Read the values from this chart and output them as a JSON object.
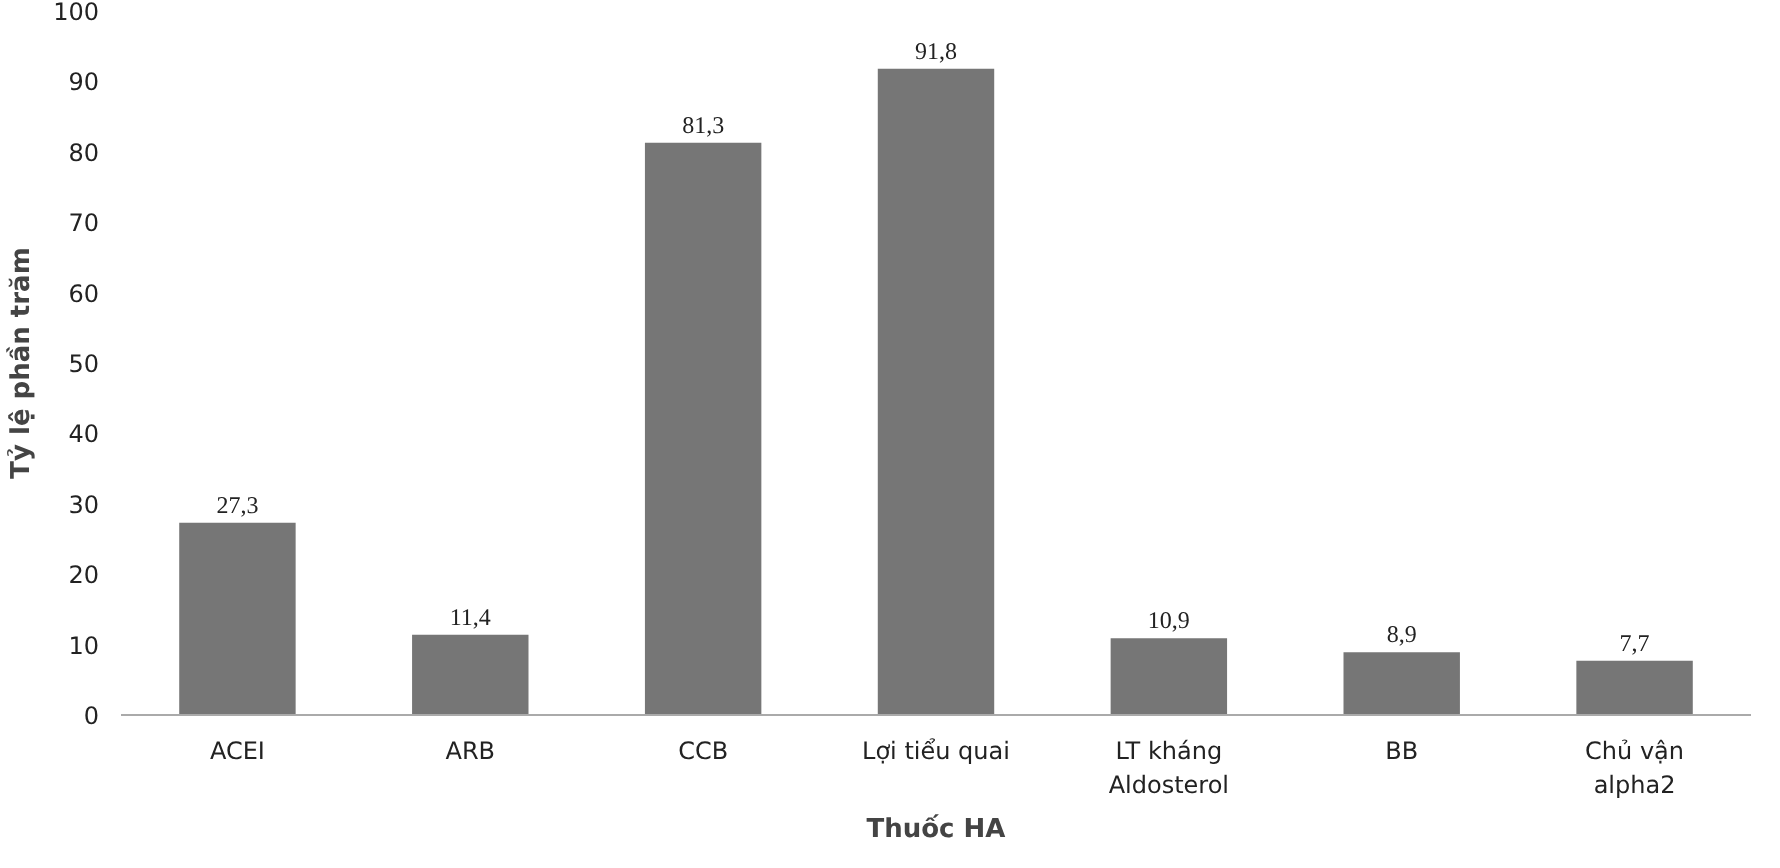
{
  "chart_data": {
    "type": "bar",
    "xlabel": "Thuốc HA",
    "ylabel": "Tỷ lệ phần trăm",
    "categories": [
      "ACEI",
      "ARB",
      "CCB",
      "Lợi tiểu quai",
      "LT kháng\nAldosterol",
      "BB",
      "Chủ vận\nalpha2"
    ],
    "values": [
      27.3,
      11.4,
      81.3,
      91.8,
      10.9,
      8.9,
      7.7
    ],
    "value_labels": [
      "27,3",
      "11,4",
      "81,3",
      "91,8",
      "10,9",
      "8,9",
      "7,7"
    ],
    "color": "#767676",
    "ylim": [
      0,
      100
    ],
    "yticks": [
      0,
      10,
      20,
      30,
      40,
      50,
      60,
      70,
      80,
      90,
      100
    ],
    "grid": false
  }
}
